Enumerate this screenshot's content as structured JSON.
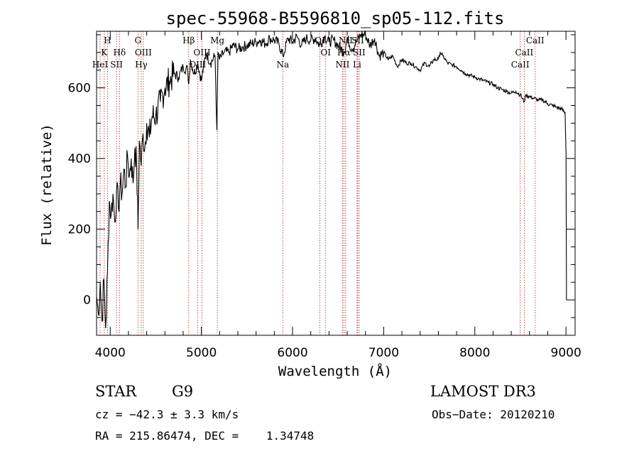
{
  "chart_data": {
    "type": "line",
    "title": "spec-55968-B5596810_sp05-112.fits",
    "xlabel": "Wavelength (Å)",
    "ylabel": "Flux (relative)",
    "xlim": [
      3850,
      9100
    ],
    "ylim": [
      -100,
      760
    ],
    "xticks": [
      4000,
      5000,
      6000,
      7000,
      8000,
      9000
    ],
    "yticks": [
      0,
      200,
      400,
      600
    ],
    "series": [
      {
        "name": "flux",
        "x": [
          3850,
          3870,
          3890,
          3910,
          3930,
          3950,
          3970,
          3990,
          4010,
          4030,
          4050,
          4070,
          4090,
          4110,
          4130,
          4150,
          4170,
          4190,
          4210,
          4230,
          4250,
          4270,
          4290,
          4305,
          4320,
          4340,
          4360,
          4380,
          4400,
          4430,
          4460,
          4500,
          4550,
          4600,
          4650,
          4700,
          4750,
          4800,
          4850,
          4861,
          4880,
          4920,
          4960,
          5000,
          5050,
          5100,
          5150,
          5170,
          5183,
          5200,
          5250,
          5300,
          5350,
          5400,
          5450,
          5500,
          5550,
          5600,
          5650,
          5700,
          5750,
          5800,
          5850,
          5895,
          5950,
          6000,
          6050,
          6100,
          6150,
          6200,
          6250,
          6300,
          6350,
          6400,
          6450,
          6500,
          6563,
          6600,
          6650,
          6700,
          6750,
          6800,
          6850,
          6900,
          6950,
          7000,
          7050,
          7100,
          7150,
          7200,
          7250,
          7300,
          7350,
          7400,
          7450,
          7500,
          7550,
          7600,
          7620,
          7650,
          7700,
          7750,
          7800,
          7850,
          7900,
          7950,
          8000,
          8050,
          8100,
          8150,
          8200,
          8250,
          8300,
          8350,
          8400,
          8450,
          8500,
          8542,
          8560,
          8600,
          8650,
          8700,
          8750,
          8800,
          8850,
          8900,
          8950,
          8990,
          9000,
          9005
        ],
        "values": [
          10,
          -40,
          50,
          -60,
          60,
          -80,
          80,
          280,
          240,
          300,
          220,
          310,
          260,
          330,
          300,
          370,
          320,
          410,
          350,
          400,
          330,
          430,
          380,
          200,
          450,
          380,
          470,
          430,
          500,
          460,
          520,
          520,
          560,
          600,
          620,
          640,
          630,
          660,
          650,
          610,
          680,
          640,
          670,
          620,
          700,
          670,
          690,
          480,
          700,
          680,
          700,
          700,
          720,
          710,
          715,
          720,
          725,
          730,
          735,
          725,
          740,
          735,
          725,
          690,
          740,
          730,
          745,
          720,
          740,
          735,
          740,
          720,
          745,
          730,
          735,
          720,
          700,
          740,
          710,
          730,
          750,
          750,
          720,
          740,
          690,
          700,
          680,
          690,
          660,
          680,
          670,
          670,
          660,
          650,
          670,
          660,
          680,
          680,
          700,
          690,
          670,
          665,
          660,
          650,
          640,
          635,
          630,
          625,
          620,
          615,
          610,
          600,
          595,
          590,
          585,
          590,
          580,
          560,
          580,
          575,
          570,
          565,
          565,
          555,
          550,
          545,
          540,
          530,
          420,
          50
        ]
      }
    ],
    "lines": [
      {
        "label": "H",
        "x": 3970,
        "row": 1
      },
      {
        "label": "K",
        "x": 3934,
        "row": 2
      },
      {
        "label": "HeI",
        "x": 3889,
        "row": 3
      },
      {
        "label": "SII",
        "x": 4069,
        "row": 3
      },
      {
        "label": "Hδ",
        "x": 4102,
        "row": 2
      },
      {
        "label": "G",
        "x": 4304,
        "row": 1
      },
      {
        "label": "OIII",
        "x": 4363,
        "row": 2
      },
      {
        "label": "Hγ",
        "x": 4340,
        "row": 3
      },
      {
        "label": "Hβ",
        "x": 4861,
        "row": 1
      },
      {
        "label": "OIII",
        "x": 5007,
        "row": 2
      },
      {
        "label": "OIII",
        "x": 4959,
        "row": 3
      },
      {
        "label": "Mg",
        "x": 5175,
        "row": 1
      },
      {
        "label": "Na",
        "x": 5893,
        "row": 3
      },
      {
        "label": "OI",
        "x": 6300,
        "row": 1
      },
      {
        "label": "OI",
        "x": 6364,
        "row": 2
      },
      {
        "label": "NII",
        "x": 6583,
        "row": 1
      },
      {
        "label": "SII",
        "x": 6716,
        "row": 1
      },
      {
        "label": "Hα",
        "x": 6563,
        "row": 2
      },
      {
        "label": "SII",
        "x": 6731,
        "row": 2
      },
      {
        "label": "NII",
        "x": 6548,
        "row": 3
      },
      {
        "label": "Li",
        "x": 6708,
        "row": 3
      },
      {
        "label": "CaII",
        "x": 8662,
        "row": 1
      },
      {
        "label": "CaII",
        "x": 8542,
        "row": 2
      },
      {
        "label": "CaII",
        "x": 8498,
        "row": 3
      }
    ],
    "colors": {
      "spectrum": "#000000",
      "line_marker": "#b22222"
    }
  },
  "info": {
    "class": "STAR",
    "subclass": "G9",
    "survey": "LAMOST DR3",
    "cz": "cz = −42.3 ± 3.3 km/s",
    "obsdate": "Obs−Date: 20120210",
    "coords": "RA = 215.86474, DEC =    1.34748"
  }
}
